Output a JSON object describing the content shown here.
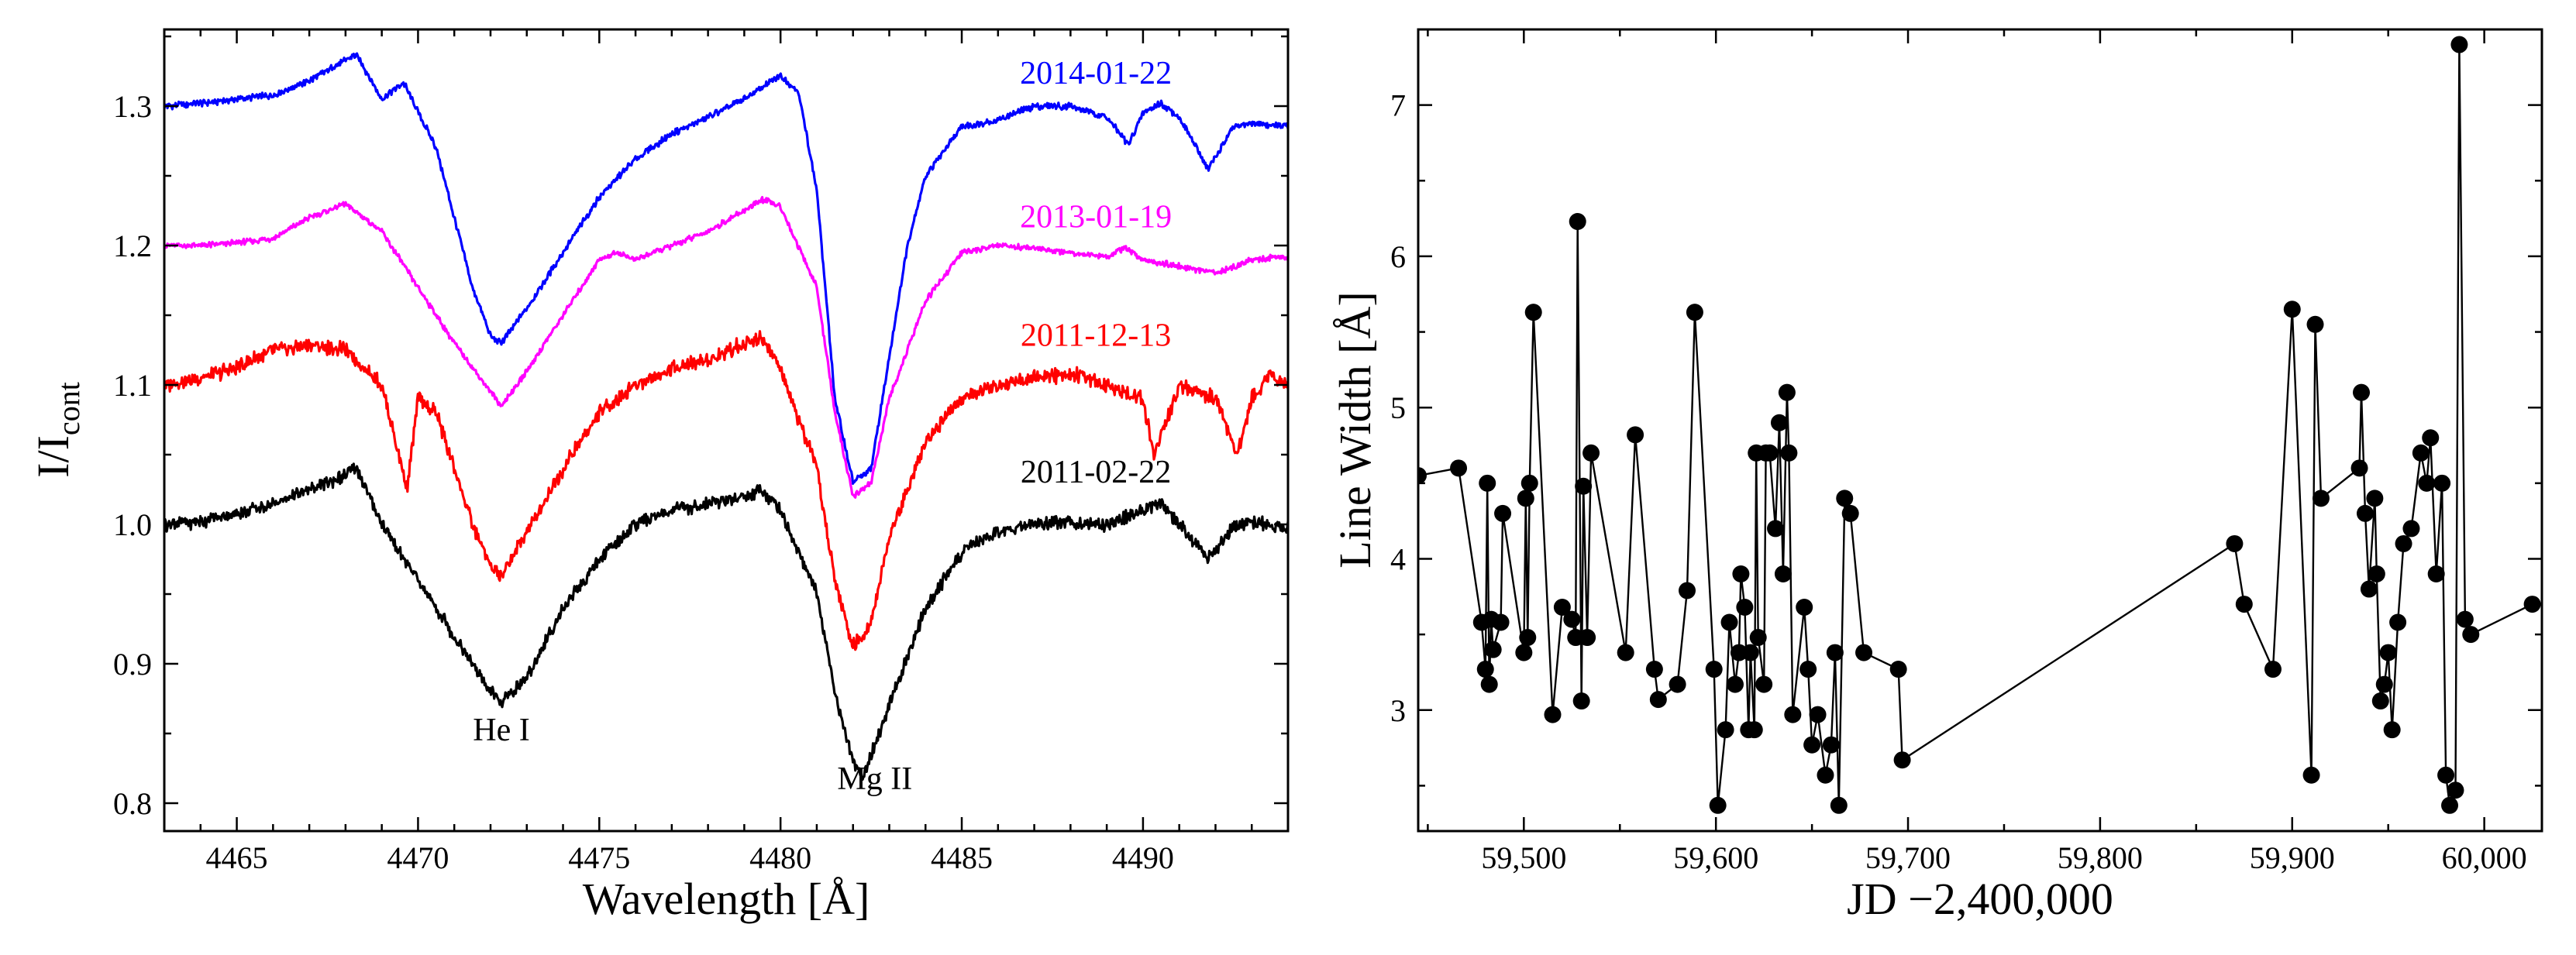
{
  "chart_data": [
    {
      "type": "line",
      "xlabel": "Wavelength [Å]",
      "ylabel_main": "I/I",
      "ylabel_sub": "cont",
      "xlim": [
        4463,
        4494
      ],
      "ylim": [
        0.78,
        1.355
      ],
      "xticks": [
        4465,
        4470,
        4475,
        4480,
        4485,
        4490
      ],
      "yticks": [
        0.8,
        0.9,
        1.0,
        1.1,
        1.2,
        1.3
      ],
      "ytick_labels": [
        "0.8",
        "0.9",
        "1.0",
        "1.1",
        "1.2",
        "1.3"
      ],
      "annotations": [
        {
          "text": "He I",
          "x": 4472.3,
          "y": 0.845
        },
        {
          "text": "Mg II",
          "x": 4482.6,
          "y": 0.81
        }
      ],
      "series": [
        {
          "name": "2014-01-22",
          "color": "#0000ff",
          "x": [
            4463,
            4464,
            4465,
            4466,
            4467,
            4468,
            4468.3,
            4469,
            4469.6,
            4470.5,
            4471,
            4471.5,
            4472,
            4472.3,
            4473,
            4474,
            4475,
            4476,
            4477,
            4478,
            4479,
            4480,
            4480.5,
            4481,
            4481.5,
            4482,
            4482.5,
            4483,
            4483.5,
            4484,
            4485,
            4486,
            4487,
            4488,
            4489,
            4489.6,
            4490,
            4490.5,
            4491,
            4491.8,
            4492.5,
            4493,
            4494
          ],
          "y": [
            1.3,
            1.302,
            1.305,
            1.308,
            1.318,
            1.333,
            1.337,
            1.305,
            1.317,
            1.27,
            1.22,
            1.17,
            1.135,
            1.13,
            1.155,
            1.195,
            1.235,
            1.262,
            1.28,
            1.292,
            1.305,
            1.322,
            1.31,
            1.24,
            1.09,
            1.03,
            1.04,
            1.12,
            1.2,
            1.25,
            1.285,
            1.29,
            1.3,
            1.3,
            1.292,
            1.272,
            1.295,
            1.302,
            1.292,
            1.255,
            1.285,
            1.288,
            1.285
          ]
        },
        {
          "name": "2013-01-19",
          "color": "#ff00ff",
          "x": [
            4463,
            4464,
            4465,
            4466,
            4467,
            4468,
            4469,
            4470,
            4471,
            4472,
            4472.3,
            4473,
            4474,
            4475,
            4475.5,
            4476,
            4477,
            4478,
            4479,
            4479.5,
            4480,
            4481,
            4481.5,
            4482,
            4482.5,
            4483,
            4484,
            4485,
            4486,
            4487,
            4488,
            4489,
            4489.5,
            4490,
            4491,
            4492,
            4493,
            4494
          ],
          "y": [
            1.2,
            1.2,
            1.202,
            1.205,
            1.22,
            1.23,
            1.21,
            1.17,
            1.13,
            1.095,
            1.085,
            1.11,
            1.15,
            1.19,
            1.195,
            1.19,
            1.2,
            1.21,
            1.225,
            1.233,
            1.228,
            1.17,
            1.08,
            1.02,
            1.03,
            1.09,
            1.16,
            1.195,
            1.2,
            1.198,
            1.195,
            1.192,
            1.198,
            1.19,
            1.185,
            1.18,
            1.19,
            1.192
          ]
        },
        {
          "name": "2011-12-13",
          "color": "#ff0000",
          "x": [
            4463,
            4464,
            4465,
            4466,
            4467,
            4468,
            4469,
            4469.7,
            4470,
            4470.5,
            4471,
            4471.5,
            4472,
            4472.3,
            4473,
            4474,
            4475,
            4476,
            4477,
            4478,
            4479,
            4479.5,
            4480,
            4481,
            4481.5,
            4482,
            4482.5,
            4483,
            4484,
            4485,
            4486,
            4487,
            4488,
            4489,
            4490,
            4490.3,
            4491,
            4492,
            4492.6,
            4493,
            4493.5,
            4494
          ],
          "y": [
            1.1,
            1.105,
            1.112,
            1.125,
            1.128,
            1.125,
            1.1,
            1.025,
            1.09,
            1.08,
            1.04,
            1.0,
            0.97,
            0.962,
            0.995,
            1.04,
            1.08,
            1.1,
            1.112,
            1.118,
            1.13,
            1.135,
            1.11,
            1.04,
            0.96,
            0.912,
            0.93,
            0.99,
            1.06,
            1.09,
            1.1,
            1.105,
            1.108,
            1.1,
            1.09,
            1.05,
            1.1,
            1.09,
            1.05,
            1.09,
            1.108,
            1.1
          ]
        },
        {
          "name": "2011-02-22",
          "color": "#000000",
          "x": [
            4463,
            4464,
            4465,
            4466,
            4467,
            4468,
            4468.3,
            4469,
            4470,
            4471,
            4472,
            4472.3,
            4473,
            4474,
            4475,
            4476,
            4477,
            4478,
            4479,
            4479.5,
            4480,
            4481,
            4481.5,
            4482,
            4482.3,
            4483,
            4484,
            4485,
            4486,
            4487,
            4488,
            4489,
            4490,
            4490.5,
            4491,
            4491.8,
            4492.5,
            4493,
            4494
          ],
          "y": [
            1.0,
            1.002,
            1.008,
            1.015,
            1.025,
            1.035,
            1.04,
            1.0,
            0.96,
            0.92,
            0.88,
            0.872,
            0.89,
            0.94,
            0.975,
            1.0,
            1.01,
            1.015,
            1.02,
            1.025,
            1.01,
            0.95,
            0.88,
            0.83,
            0.82,
            0.87,
            0.94,
            0.98,
            0.995,
            1.0,
            1.002,
            1.0,
            1.01,
            1.015,
            1.0,
            0.975,
            0.998,
            1.002,
            0.998
          ]
        }
      ]
    },
    {
      "type": "line",
      "xlabel": "JD −2,400,000",
      "ylabel": "Line Width [Å]",
      "xlim": [
        59445,
        60030
      ],
      "ylim": [
        2.2,
        7.5
      ],
      "xticks": [
        59500,
        59600,
        59700,
        59800,
        59900,
        60000
      ],
      "xtick_labels": [
        "59,500",
        "59,600",
        "59,700",
        "59,800",
        "59,900",
        "60,000"
      ],
      "yticks": [
        3,
        4,
        5,
        6,
        7
      ],
      "ytick_labels": [
        "3",
        "4",
        "5",
        "6",
        "7"
      ],
      "series": [
        {
          "x": [
            59445,
            59466,
            59478,
            59480,
            59481,
            59482,
            59483,
            59484,
            59488,
            59489,
            59500,
            59501,
            59502,
            59503,
            59505,
            59515,
            59520,
            59525,
            59527,
            59528,
            59530,
            59531,
            59533,
            59535,
            59553,
            59558,
            59568,
            59570,
            59580,
            59585,
            59589,
            59599,
            59601,
            59605,
            59607,
            59610,
            59612,
            59613,
            59615,
            59617,
            59618,
            59620,
            59621,
            59622,
            59625,
            59626,
            59628,
            59631,
            59633,
            59635,
            59637,
            59638,
            59640,
            59646,
            59648,
            59650,
            59653,
            59657,
            59660,
            59662,
            59664,
            59667,
            59670,
            59677,
            59695,
            59697,
            59870,
            59875,
            59890,
            59900,
            59910,
            59912,
            59915,
            59935,
            59936,
            59938,
            59940,
            59943,
            59944,
            59946,
            59948,
            59950,
            59952,
            59955,
            59958,
            59962,
            59967,
            59970,
            59972,
            59975,
            59978,
            59980,
            59982,
            59985,
            59987,
            59990,
            59993,
            60025
          ],
          "y": [
            4.55,
            4.6,
            3.58,
            3.27,
            4.5,
            3.17,
            3.6,
            3.4,
            3.58,
            4.3,
            3.38,
            4.4,
            3.48,
            4.5,
            5.63,
            2.97,
            3.68,
            3.6,
            3.48,
            6.23,
            3.06,
            4.48,
            3.48,
            4.7,
            3.38,
            4.82,
            3.27,
            3.07,
            3.17,
            3.79,
            5.63,
            3.27,
            2.37,
            2.87,
            3.58,
            3.17,
            3.38,
            3.9,
            3.68,
            2.87,
            3.38,
            2.87,
            4.7,
            3.48,
            3.17,
            4.7,
            4.7,
            4.2,
            4.9,
            3.9,
            5.1,
            4.7,
            2.97,
            3.68,
            3.27,
            2.77,
            2.97,
            2.57,
            2.77,
            3.38,
            2.37,
            4.4,
            4.3,
            3.38,
            3.27,
            2.67,
            4.1,
            3.7,
            3.27,
            5.65,
            2.57,
            5.55,
            4.4,
            4.6,
            5.1,
            4.3,
            3.8,
            4.4,
            3.9,
            3.06,
            3.17,
            3.38,
            2.87,
            3.58,
            4.1,
            4.2,
            4.7,
            4.5,
            4.8,
            3.9,
            4.5,
            2.57,
            2.37,
            2.47,
            7.4,
            3.6,
            3.5,
            3.7
          ]
        }
      ]
    }
  ]
}
